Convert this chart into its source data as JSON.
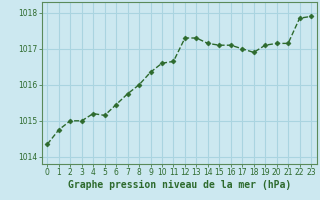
{
  "x": [
    0,
    1,
    2,
    3,
    4,
    5,
    6,
    7,
    8,
    9,
    10,
    11,
    12,
    13,
    14,
    15,
    16,
    17,
    18,
    19,
    20,
    21,
    22,
    23
  ],
  "y": [
    1014.35,
    1014.75,
    1015.0,
    1015.0,
    1015.2,
    1015.15,
    1015.45,
    1015.75,
    1016.0,
    1016.35,
    1016.6,
    1016.65,
    1017.3,
    1017.3,
    1017.15,
    1017.1,
    1017.1,
    1017.0,
    1016.9,
    1017.1,
    1017.15,
    1017.15,
    1017.85,
    1017.9
  ],
  "line_color": "#2d6a2d",
  "marker": "D",
  "marker_size": 2.5,
  "line_width": 1.0,
  "background_color": "#cce8f0",
  "grid_color": "#aad4e0",
  "xlabel": "Graphe pression niveau de la mer (hPa)",
  "xlabel_color": "#2d6a2d",
  "xlabel_fontsize": 7,
  "tick_color": "#2d6a2d",
  "tick_fontsize": 5.5,
  "ylim": [
    1013.8,
    1018.3
  ],
  "yticks": [
    1014,
    1015,
    1016,
    1017,
    1018
  ],
  "xlim": [
    -0.5,
    23.5
  ],
  "xticks": [
    0,
    1,
    2,
    3,
    4,
    5,
    6,
    7,
    8,
    9,
    10,
    11,
    12,
    13,
    14,
    15,
    16,
    17,
    18,
    19,
    20,
    21,
    22,
    23
  ],
  "spine_color": "#5a8a5a"
}
